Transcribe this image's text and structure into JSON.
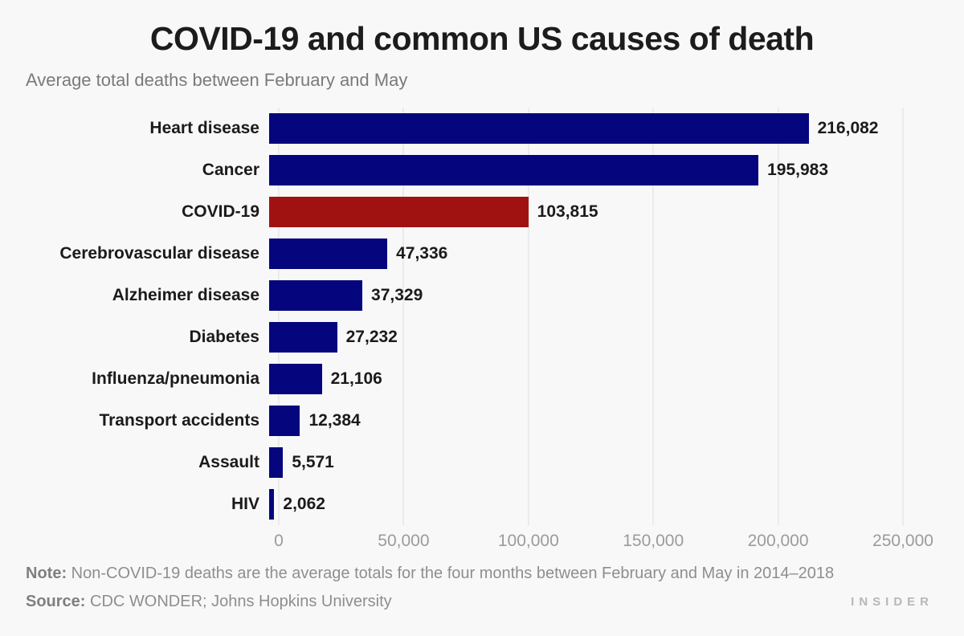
{
  "chart_data": {
    "type": "bar",
    "orientation": "horizontal",
    "title": "COVID-19 and common US causes of death",
    "subtitle": "Average total deaths between February and May",
    "categories": [
      "Heart disease",
      "Cancer",
      "COVID-19",
      "Cerebrovascular disease",
      "Alzheimer disease",
      "Diabetes",
      "Influenza/pneumonia",
      "Transport accidents",
      "Assault",
      "HIV"
    ],
    "values": [
      216082,
      195983,
      103815,
      47336,
      37329,
      27232,
      21106,
      12384,
      5571,
      2062
    ],
    "value_labels": [
      "216,082",
      "195,983",
      "103,815",
      "47,336",
      "37,329",
      "27,232",
      "21,106",
      "12,384",
      "5,571",
      "2,062"
    ],
    "highlight_category": "COVID-19",
    "bar_color_default": "#05057d",
    "bar_color_highlight": "#a01212",
    "xlim": [
      0,
      250000
    ],
    "x_ticks": [
      0,
      50000,
      100000,
      150000,
      200000,
      250000
    ],
    "x_tick_labels": [
      "0",
      "50,000",
      "100,000",
      "150,000",
      "200,000",
      "250,000"
    ],
    "grid": true,
    "legend": false,
    "background_color": "#f8f8f8"
  },
  "footer": {
    "note_label": "Note:",
    "note_text": "Non-COVID-19 deaths are the average totals for the four months between February and May in 2014–2018",
    "source_label": "Source:",
    "source_text": "CDC WONDER; Johns Hopkins University",
    "brand": "INSIDER"
  }
}
